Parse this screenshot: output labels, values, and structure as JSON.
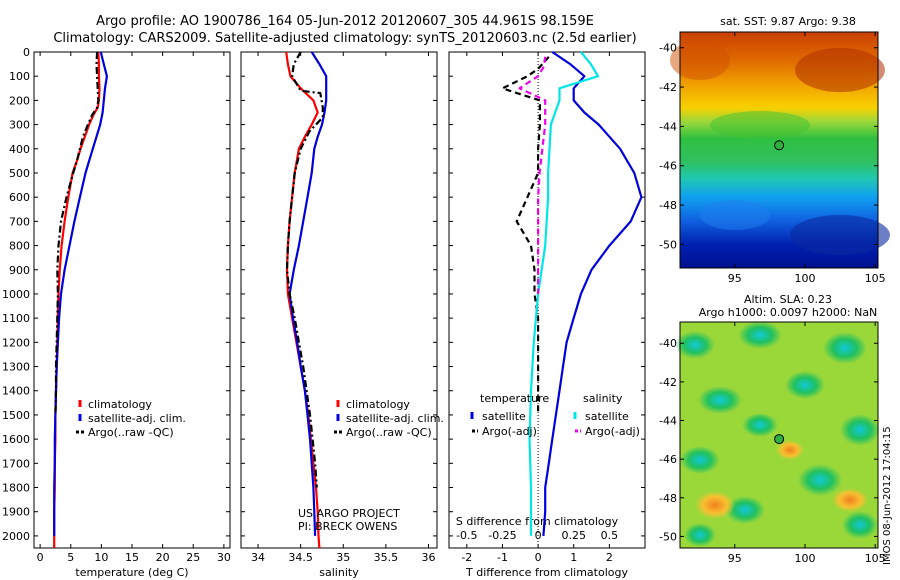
{
  "header": {
    "line1": "Argo profile: AO 1900786_164 05-Jun-2012 20120607_305 44.961S 98.159E",
    "line2": "Climatology: CARS2009. Satellite-adjusted climatology: synTS_20120603.nc (2.5d earlier)"
  },
  "colors": {
    "climatology": "#ff0000",
    "satellite": "#0000dd",
    "argo": "#000000",
    "temp_diff_sat": "#0000dd",
    "sal_diff_sat": "#00e6e6",
    "sal_diff_argo": "#ee00ee"
  },
  "chart_data": [
    {
      "id": "temperature",
      "type": "line",
      "xlabel": "temperature (deg C)",
      "ylabel": "",
      "xlim": [
        -1,
        31
      ],
      "ylim": [
        2050,
        0
      ],
      "xticks": [
        0,
        5,
        10,
        15,
        20,
        25,
        30
      ],
      "yticks": [
        0,
        100,
        200,
        300,
        400,
        500,
        600,
        700,
        800,
        900,
        1000,
        1100,
        1200,
        1300,
        1400,
        1500,
        1600,
        1700,
        1800,
        1900,
        2000
      ],
      "legend": {
        "placement": "lower-center",
        "entries": [
          "climatology",
          "satellite-adj. clim.",
          "Argo(..raw -QC)"
        ]
      },
      "series": [
        {
          "name": "climatology",
          "style": "solid",
          "points": [
            [
              9.5,
              0
            ],
            [
              9.6,
              50
            ],
            [
              9.6,
              100
            ],
            [
              9.7,
              150
            ],
            [
              9.6,
              200
            ],
            [
              9.4,
              230
            ],
            [
              8.7,
              260
            ],
            [
              8.0,
              300
            ],
            [
              7.3,
              350
            ],
            [
              6.6,
              400
            ],
            [
              6.0,
              450
            ],
            [
              5.3,
              500
            ],
            [
              4.6,
              600
            ],
            [
              4.0,
              700
            ],
            [
              3.5,
              800
            ],
            [
              3.2,
              900
            ],
            [
              3.0,
              1000
            ],
            [
              2.9,
              1100
            ],
            [
              2.8,
              1200
            ],
            [
              2.7,
              1300
            ],
            [
              2.6,
              1400
            ],
            [
              2.5,
              1500
            ],
            [
              2.5,
              1600
            ],
            [
              2.4,
              1700
            ],
            [
              2.4,
              1800
            ],
            [
              2.3,
              1900
            ],
            [
              2.3,
              2000
            ],
            [
              2.3,
              2050
            ]
          ]
        },
        {
          "name": "satellite-adj. clim.",
          "style": "solid",
          "points": [
            [
              9.9,
              0
            ],
            [
              10.4,
              50
            ],
            [
              10.9,
              100
            ],
            [
              10.6,
              150
            ],
            [
              10.4,
              200
            ],
            [
              10.2,
              250
            ],
            [
              9.8,
              300
            ],
            [
              9.2,
              350
            ],
            [
              8.6,
              400
            ],
            [
              8.0,
              450
            ],
            [
              7.4,
              500
            ],
            [
              6.5,
              600
            ],
            [
              5.6,
              700
            ],
            [
              4.8,
              800
            ],
            [
              4.0,
              900
            ],
            [
              3.4,
              1000
            ],
            [
              3.1,
              1100
            ],
            [
              2.9,
              1200
            ],
            [
              2.7,
              1300
            ],
            [
              2.6,
              1400
            ],
            [
              2.5,
              1500
            ],
            [
              2.4,
              1600
            ],
            [
              2.4,
              1700
            ],
            [
              2.3,
              1800
            ],
            [
              2.3,
              1900
            ],
            [
              2.3,
              2000
            ]
          ]
        },
        {
          "name": "Argo(..raw -QC)",
          "style": "dashdot",
          "points": [
            [
              9.3,
              0
            ],
            [
              9.2,
              50
            ],
            [
              9.3,
              100
            ],
            [
              9.4,
              150
            ],
            [
              9.5,
              200
            ],
            [
              9.3,
              230
            ],
            [
              8.5,
              260
            ],
            [
              7.8,
              300
            ],
            [
              7.0,
              350
            ],
            [
              6.5,
              400
            ],
            [
              6.0,
              450
            ],
            [
              5.4,
              500
            ],
            [
              4.3,
              600
            ],
            [
              3.4,
              700
            ],
            [
              3.0,
              800
            ],
            [
              2.8,
              900
            ],
            [
              2.9,
              1000
            ],
            [
              2.8,
              1100
            ],
            [
              2.7,
              1200
            ],
            [
              2.6,
              1300
            ],
            [
              2.6,
              1400
            ],
            [
              2.5,
              1500
            ]
          ]
        }
      ]
    },
    {
      "id": "salinity",
      "type": "line",
      "xlabel": "salinity",
      "ylabel": "",
      "xlim": [
        33.8,
        36.1
      ],
      "ylim": [
        2050,
        0
      ],
      "xticks": [
        34,
        34.5,
        35,
        35.5,
        36
      ],
      "xtick_labels": [
        "34",
        "34.5",
        "35",
        "35.5",
        "36"
      ],
      "legend": {
        "placement": "lower-right",
        "entries": [
          "climatology",
          "satellite-adj. clim.",
          "Argo(..raw -QC)"
        ]
      },
      "annotation": [
        "US ARGO PROJECT",
        "PI: BRECK OWENS"
      ],
      "series": [
        {
          "name": "climatology",
          "style": "solid",
          "points": [
            [
              34.33,
              0
            ],
            [
              34.35,
              50
            ],
            [
              34.38,
              100
            ],
            [
              34.5,
              150
            ],
            [
              34.65,
              200
            ],
            [
              34.7,
              250
            ],
            [
              34.63,
              300
            ],
            [
              34.55,
              350
            ],
            [
              34.48,
              400
            ],
            [
              34.43,
              500
            ],
            [
              34.4,
              600
            ],
            [
              34.37,
              700
            ],
            [
              34.35,
              800
            ],
            [
              34.34,
              900
            ],
            [
              34.35,
              1000
            ],
            [
              34.4,
              1100
            ],
            [
              34.45,
              1200
            ],
            [
              34.5,
              1300
            ],
            [
              34.55,
              1400
            ],
            [
              34.59,
              1500
            ],
            [
              34.62,
              1600
            ],
            [
              34.65,
              1700
            ],
            [
              34.68,
              1800
            ],
            [
              34.7,
              1900
            ],
            [
              34.71,
              2000
            ],
            [
              34.72,
              2050
            ]
          ]
        },
        {
          "name": "satellite-adj. clim.",
          "style": "solid",
          "points": [
            [
              34.63,
              0
            ],
            [
              34.72,
              50
            ],
            [
              34.8,
              100
            ],
            [
              34.8,
              150
            ],
            [
              34.8,
              200
            ],
            [
              34.78,
              250
            ],
            [
              34.75,
              300
            ],
            [
              34.7,
              350
            ],
            [
              34.66,
              400
            ],
            [
              34.63,
              500
            ],
            [
              34.58,
              600
            ],
            [
              34.53,
              700
            ],
            [
              34.48,
              800
            ],
            [
              34.42,
              900
            ],
            [
              34.37,
              1000
            ],
            [
              34.41,
              1100
            ],
            [
              34.46,
              1200
            ],
            [
              34.5,
              1300
            ],
            [
              34.55,
              1400
            ],
            [
              34.58,
              1500
            ],
            [
              34.61,
              1600
            ],
            [
              34.63,
              1700
            ],
            [
              34.65,
              1800
            ],
            [
              34.66,
              1900
            ],
            [
              34.67,
              2000
            ]
          ]
        },
        {
          "name": "Argo(..raw -QC)",
          "style": "dashdot",
          "points": [
            [
              34.5,
              0
            ],
            [
              34.42,
              50
            ],
            [
              34.4,
              100
            ],
            [
              34.5,
              160
            ],
            [
              34.73,
              170
            ],
            [
              34.76,
              230
            ],
            [
              34.76,
              270
            ],
            [
              34.6,
              330
            ],
            [
              34.5,
              400
            ],
            [
              34.43,
              500
            ],
            [
              34.4,
              600
            ],
            [
              34.37,
              700
            ],
            [
              34.35,
              800
            ],
            [
              34.34,
              900
            ],
            [
              34.37,
              1000
            ],
            [
              34.43,
              1100
            ],
            [
              34.48,
              1200
            ],
            [
              34.53,
              1300
            ],
            [
              34.57,
              1400
            ],
            [
              34.61,
              1500
            ],
            [
              34.64,
              1600
            ],
            [
              34.67,
              1700
            ],
            [
              34.69,
              1800
            ]
          ]
        }
      ]
    },
    {
      "id": "difference",
      "type": "line",
      "xlabel": "T difference from climatology",
      "top_axis_label": "S difference from climatology",
      "xlim": [
        -2.5,
        3
      ],
      "ylim": [
        2050,
        0
      ],
      "xticks": [
        -2,
        -1,
        0,
        1,
        2
      ],
      "top_xticks": [
        -0.5,
        -0.25,
        0,
        0.25,
        0.5
      ],
      "top_xtick_labels": [
        "-0.5",
        "-0.25",
        "0",
        "0.25",
        "0.5"
      ],
      "legend": {
        "placement": "lower-center",
        "col1_title": "temperature",
        "col2_title": "salinity",
        "entries": [
          "satellite",
          "Argo(-adj)",
          "satellite",
          "Argo(-adj)"
        ]
      },
      "series": [
        {
          "name": "temperature satellite",
          "style": "solid",
          "color_key": "temp_diff_sat",
          "points": [
            [
              0.4,
              0
            ],
            [
              0.9,
              50
            ],
            [
              1.3,
              100
            ],
            [
              1.0,
              150
            ],
            [
              1.0,
              200
            ],
            [
              1.3,
              250
            ],
            [
              1.7,
              300
            ],
            [
              2.0,
              350
            ],
            [
              2.3,
              400
            ],
            [
              2.5,
              450
            ],
            [
              2.7,
              500
            ],
            [
              2.9,
              600
            ],
            [
              2.6,
              700
            ],
            [
              2.0,
              800
            ],
            [
              1.5,
              900
            ],
            [
              1.2,
              1000
            ],
            [
              1.0,
              1100
            ],
            [
              0.8,
              1200
            ],
            [
              0.7,
              1300
            ],
            [
              0.6,
              1400
            ],
            [
              0.5,
              1500
            ],
            [
              0.4,
              1600
            ],
            [
              0.3,
              1700
            ],
            [
              0.2,
              1800
            ],
            [
              0.2,
              1900
            ],
            [
              0.15,
              2000
            ]
          ]
        },
        {
          "name": "temperature Argo(-adj)",
          "style": "dashed",
          "color_key": "argo",
          "points": [
            [
              0.3,
              20
            ],
            [
              0.0,
              70
            ],
            [
              -0.3,
              100
            ],
            [
              -1.0,
              150
            ],
            [
              -0.7,
              165
            ],
            [
              0.05,
              200
            ],
            [
              0.05,
              300
            ],
            [
              0.0,
              400
            ],
            [
              0.0,
              500
            ],
            [
              -0.3,
              600
            ],
            [
              -0.6,
              700
            ],
            [
              -0.2,
              800
            ],
            [
              -0.1,
              900
            ],
            [
              -0.1,
              1000
            ],
            [
              0.0,
              1100
            ],
            [
              0.0,
              1200
            ],
            [
              0.0,
              1300
            ],
            [
              0.0,
              1400
            ],
            [
              0.0,
              1500
            ]
          ]
        },
        {
          "name": "salinity satellite",
          "style": "solid",
          "color_key": "sal_diff_sat",
          "points": [
            [
              0.3,
              0
            ],
            [
              0.37,
              50
            ],
            [
              0.42,
              100
            ],
            [
              0.15,
              150
            ],
            [
              0.15,
              200
            ],
            [
              0.09,
              300
            ],
            [
              0.08,
              400
            ],
            [
              0.07,
              500
            ],
            [
              0.07,
              600
            ],
            [
              0.05,
              800
            ],
            [
              0.0,
              1000
            ],
            [
              -0.03,
              1200
            ],
            [
              -0.05,
              1400
            ],
            [
              -0.06,
              1600
            ],
            [
              -0.05,
              1800
            ],
            [
              -0.05,
              2000
            ]
          ]
        },
        {
          "name": "salinity Argo(-adj)",
          "style": "dashed",
          "color_key": "sal_diff_argo",
          "points": [
            [
              0.05,
              20
            ],
            [
              0.04,
              60
            ],
            [
              0.0,
              100
            ],
            [
              -0.13,
              150
            ],
            [
              0.05,
              200
            ],
            [
              0.05,
              300
            ],
            [
              0.03,
              400
            ],
            [
              0.01,
              500
            ],
            [
              0.0,
              600
            ],
            [
              0.0,
              700
            ],
            [
              0.0,
              800
            ],
            [
              0.0,
              900
            ],
            [
              0.0,
              1000
            ]
          ]
        }
      ]
    }
  ],
  "maps": [
    {
      "id": "sst-map",
      "title": "sat. SST: 9.87 Argo: 9.38",
      "xticks": [
        95,
        100,
        105
      ],
      "yticks": [
        -40,
        -42,
        -44,
        -46,
        -48,
        -50
      ],
      "float_location": [
        98.159,
        -44.961
      ]
    },
    {
      "id": "sla-map",
      "title_line1": "Altim. SLA: 0.23",
      "title_line2": "Argo h1000: 0.0097 h2000: NaN",
      "xticks": [
        95,
        100,
        105
      ],
      "yticks": [
        -40,
        -42,
        -44,
        -46,
        -48,
        -50
      ],
      "float_location": [
        98.159,
        -44.961
      ]
    }
  ],
  "side_label": "IMOS 08-Jun-2012 17:04:15"
}
